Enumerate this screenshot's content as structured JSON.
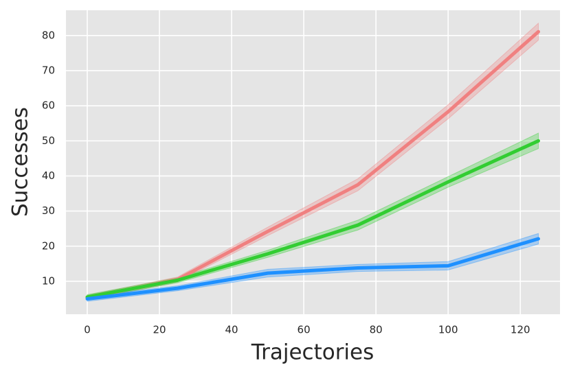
{
  "chart_data": {
    "type": "line",
    "x_label": "Trajectories",
    "y_label": "Successes",
    "x": [
      0,
      25,
      50,
      75,
      100,
      125
    ],
    "series": [
      {
        "color": "#f08080",
        "values": [
          5.3,
          10.5,
          24.2,
          37.5,
          58.3,
          81.1
        ],
        "lower": [
          4.6,
          9.8,
          23.0,
          35.8,
          56.3,
          78.7
        ],
        "upper": [
          6.0,
          11.2,
          25.4,
          39.2,
          60.3,
          83.5
        ]
      },
      {
        "color": "#32cd32",
        "values": [
          5.5,
          10.3,
          17.8,
          26.0,
          38.3,
          50.0
        ],
        "lower": [
          4.8,
          9.6,
          16.8,
          24.6,
          36.8,
          47.8
        ],
        "upper": [
          6.2,
          11.0,
          18.8,
          27.4,
          39.8,
          52.2
        ]
      },
      {
        "color": "#1e90ff",
        "values": [
          5.0,
          8.0,
          12.3,
          13.8,
          14.4,
          22.1
        ],
        "lower": [
          4.3,
          7.3,
          11.2,
          12.8,
          13.2,
          20.6
        ],
        "upper": [
          5.7,
          8.7,
          13.4,
          14.8,
          15.6,
          23.6
        ]
      }
    ],
    "xlim": [
      -5.9,
      131.0
    ],
    "ylim": [
      0.6,
      87.2
    ],
    "xticks": [
      0,
      20,
      40,
      60,
      80,
      100,
      120
    ],
    "yticks": [
      10,
      20,
      30,
      40,
      50,
      60,
      70,
      80
    ],
    "grid": true
  }
}
